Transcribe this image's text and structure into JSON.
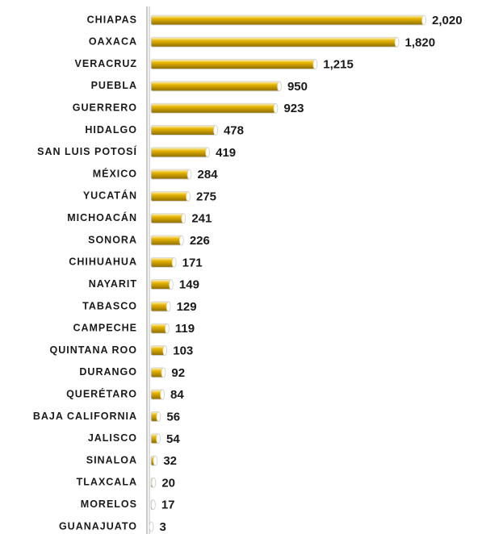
{
  "chart_data": {
    "type": "bar",
    "orientation": "horizontal",
    "categories": [
      "CHIAPAS",
      "OAXACA",
      "VERACRUZ",
      "PUEBLA",
      "GUERRERO",
      "HIDALGO",
      "SAN LUIS POTOSÍ",
      "MÉXICO",
      "YUCATÁN",
      "MICHOACÁN",
      "SONORA",
      "CHIHUAHUA",
      "NAYARIT",
      "TABASCO",
      "CAMPECHE",
      "QUINTANA ROO",
      "DURANGO",
      "QUERÉTARO",
      "BAJA CALIFORNIA",
      "JALISCO",
      "SINALOA",
      "TLAXCALA",
      "MORELOS",
      "GUANAJUATO"
    ],
    "values": [
      2020,
      1820,
      1215,
      950,
      923,
      478,
      419,
      284,
      275,
      241,
      226,
      171,
      149,
      129,
      119,
      103,
      92,
      84,
      56,
      54,
      32,
      20,
      17,
      3
    ],
    "value_labels": [
      "2,020",
      "1,820",
      "1,215",
      "950",
      "923",
      "478",
      "419",
      "284",
      "275",
      "241",
      "226",
      "171",
      "149",
      "129",
      "119",
      "103",
      "92",
      "84",
      "56",
      "54",
      "32",
      "20",
      "17",
      "3"
    ],
    "color": "#e6b400"
  }
}
